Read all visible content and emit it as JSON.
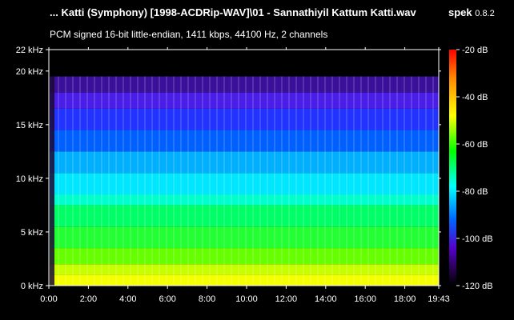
{
  "header": {
    "title": "... Katti (Symphony) [1998-ACDRip-WAV]\\01 - Sannathiyil Kattum Katti.wav",
    "subtitle": "PCM signed 16-bit little-endian, 1411 kbps, 44100 Hz, 2 channels",
    "app_name": "spek",
    "app_version": "0.8.2"
  },
  "chart_data": {
    "type": "heatmap",
    "title": "... Katti (Symphony) [1998-ACDRip-WAV]\\01 - Sannathiyil Kattum Katti.wav",
    "subtitle": "PCM signed 16-bit little-endian, 1411 kbps, 44100 Hz, 2 channels",
    "x_axis": {
      "range_seconds": [
        0,
        1183
      ],
      "ticks": [
        {
          "value": 0,
          "label": "0:00"
        },
        {
          "value": 120,
          "label": "2:00"
        },
        {
          "value": 240,
          "label": "4:00"
        },
        {
          "value": 360,
          "label": "6:00"
        },
        {
          "value": 480,
          "label": "8:00"
        },
        {
          "value": 600,
          "label": "10:00"
        },
        {
          "value": 720,
          "label": "12:00"
        },
        {
          "value": 840,
          "label": "14:00"
        },
        {
          "value": 960,
          "label": "16:00"
        },
        {
          "value": 1080,
          "label": "18:00"
        },
        {
          "value": 1183,
          "label": "19:43"
        }
      ]
    },
    "y_axis": {
      "range_khz": [
        0,
        22
      ],
      "ticks": [
        {
          "value": 0,
          "label": "0 kHz"
        },
        {
          "value": 5,
          "label": "5 kHz"
        },
        {
          "value": 10,
          "label": "10 kHz"
        },
        {
          "value": 15,
          "label": "15 kHz"
        },
        {
          "value": 20,
          "label": "20 kHz"
        },
        {
          "value": 22,
          "label": "22 kHz"
        }
      ]
    },
    "colorbar": {
      "range_db": [
        -120,
        -20
      ],
      "ticks": [
        {
          "value": -20,
          "label": "-20 dB"
        },
        {
          "value": -40,
          "label": "-40 dB"
        },
        {
          "value": -60,
          "label": "-60 dB"
        },
        {
          "value": -80,
          "label": "-80 dB"
        },
        {
          "value": -100,
          "label": "-100 dB"
        },
        {
          "value": -120,
          "label": "-120 dB"
        }
      ],
      "colors": [
        "#ff0000",
        "#ff9900",
        "#ffff00",
        "#00ff00",
        "#00ffff",
        "#0066ff",
        "#5500cc",
        "#220044",
        "#000000"
      ]
    },
    "bands": [
      {
        "from_khz": 0,
        "to_khz": 1,
        "color": "#f5ff00"
      },
      {
        "from_khz": 1,
        "to_khz": 2,
        "color": "#c8ff00"
      },
      {
        "from_khz": 2,
        "to_khz": 3.5,
        "color": "#66ff00"
      },
      {
        "from_khz": 3.5,
        "to_khz": 5.5,
        "color": "#22ff33"
      },
      {
        "from_khz": 5.5,
        "to_khz": 7.5,
        "color": "#00ff66"
      },
      {
        "from_khz": 7.5,
        "to_khz": 8.5,
        "color": "#00ffcc"
      },
      {
        "from_khz": 8.5,
        "to_khz": 10.5,
        "color": "#00e6ff"
      },
      {
        "from_khz": 10.5,
        "to_khz": 12.5,
        "color": "#00b0ff"
      },
      {
        "from_khz": 12.5,
        "to_khz": 14.5,
        "color": "#0060ff"
      },
      {
        "from_khz": 14.5,
        "to_khz": 16.5,
        "color": "#2233ff"
      },
      {
        "from_khz": 16.5,
        "to_khz": 18,
        "color": "#4a1ee6"
      },
      {
        "from_khz": 18,
        "to_khz": 19.5,
        "color": "#3a0f99"
      },
      {
        "from_khz": 19.5,
        "to_khz": 22,
        "color": "#000000"
      }
    ]
  }
}
